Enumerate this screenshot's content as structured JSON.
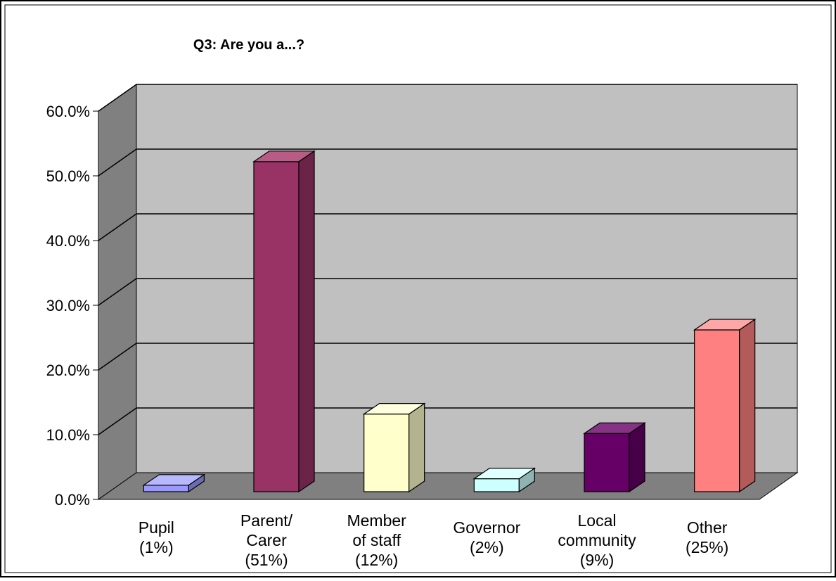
{
  "chart_data": {
    "type": "bar",
    "title": "Q3: Are you a...?",
    "categories": [
      [
        "Pupil",
        "(1%)"
      ],
      [
        "Parent/",
        "Carer",
        "(51%)"
      ],
      [
        "Member",
        "of staff",
        "(12%)"
      ],
      [
        "Governor",
        "(2%)"
      ],
      [
        "Local",
        "community",
        "(9%)"
      ],
      [
        "Other",
        "(25%)"
      ]
    ],
    "values": [
      1,
      51,
      12,
      2,
      9,
      25
    ],
    "ylim": [
      0,
      60
    ],
    "yticks": [
      0,
      10,
      20,
      30,
      40,
      50,
      60
    ],
    "ytick_labels": [
      "0.0%",
      "10.0%",
      "20.0%",
      "30.0%",
      "40.0%",
      "50.0%",
      "60.0%"
    ],
    "xlabel": "",
    "ylabel": "",
    "grid": true,
    "legend": "none",
    "style": "3d",
    "colors": [
      "#9999ff",
      "#993366",
      "#ffffcc",
      "#ccffff",
      "#660066",
      "#ff8080"
    ],
    "side_colors": [
      "#6b6bb3",
      "#6b2447",
      "#b3b38f",
      "#8fb3b3",
      "#470047",
      "#b35a5a"
    ],
    "top_colors": [
      "#b8b8ff",
      "#b85c85",
      "#ffffe0",
      "#e0ffff",
      "#853385",
      "#ffa6a6"
    ],
    "wall_color": "#c0c0c0",
    "side_wall_color": "#808080",
    "floor_color": "#808080"
  }
}
